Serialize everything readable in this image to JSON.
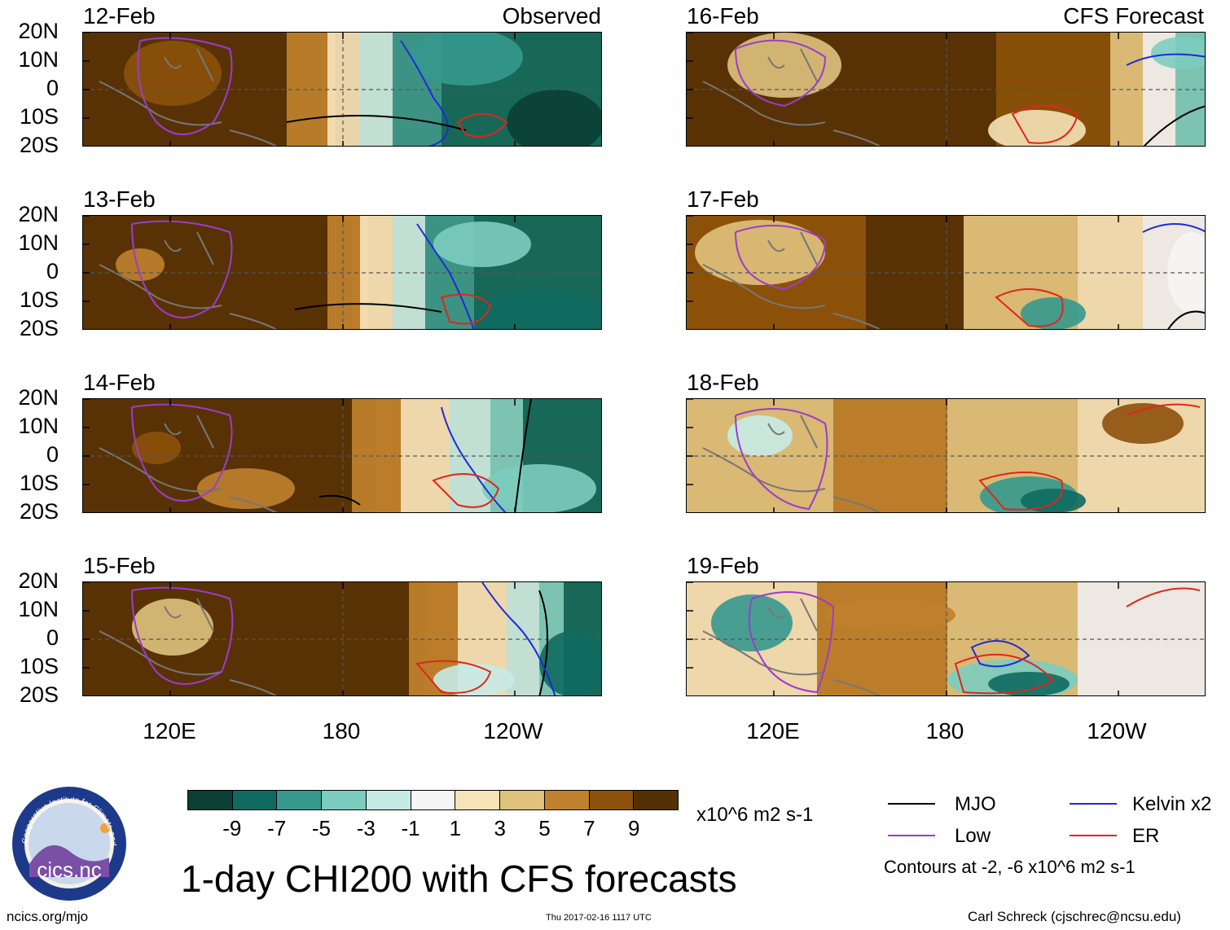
{
  "chart_data": {
    "type": "heatmap",
    "title": "1-day CHI200 with CFS forecasts",
    "units": "x10^6 m2 s-1",
    "colorbar": {
      "colors": [
        "#0b3f35",
        "#0e6a60",
        "#35998e",
        "#7ccdc0",
        "#c6ebe5",
        "#f5f5f5",
        "#f6e3b8",
        "#dfc27d",
        "#bf812d",
        "#8c510a",
        "#543005"
      ],
      "ticks": [
        "-9",
        "-7",
        "-5",
        "-3",
        "-1",
        "1",
        "3",
        "5",
        "7",
        "9"
      ]
    },
    "y_axis_labels": [
      "20N",
      "10N",
      "0",
      "10S",
      "20S"
    ],
    "x_axis_labels": [
      "120E",
      "180",
      "120W"
    ],
    "columns": [
      {
        "corner_label": "Observed",
        "dates": [
          "12-Feb",
          "13-Feb",
          "14-Feb",
          "15-Feb"
        ]
      },
      {
        "corner_label": "CFS Forecast",
        "dates": [
          "16-Feb",
          "17-Feb",
          "18-Feb",
          "19-Feb"
        ]
      }
    ],
    "legend": {
      "entries": [
        {
          "name": "MJO",
          "color": "#000000"
        },
        {
          "name": "Kelvin x2",
          "color": "#1f2bd6"
        },
        {
          "name": "Low",
          "color": "#9b3ccf"
        },
        {
          "name": "ER",
          "color": "#e0261c"
        }
      ],
      "contours_note": "Contours at -2, -6 x10^6 m2 s-1"
    }
  },
  "logo": {
    "text": "cics.nc",
    "ring_text": "Cooperative Institute for Climate and Satellites"
  },
  "footer": {
    "left": "ncics.org/mjo",
    "center": "Thu 2017-02-16 1117 UTC",
    "right": "Carl Schreck (cjschrec@ncsu.edu)"
  }
}
